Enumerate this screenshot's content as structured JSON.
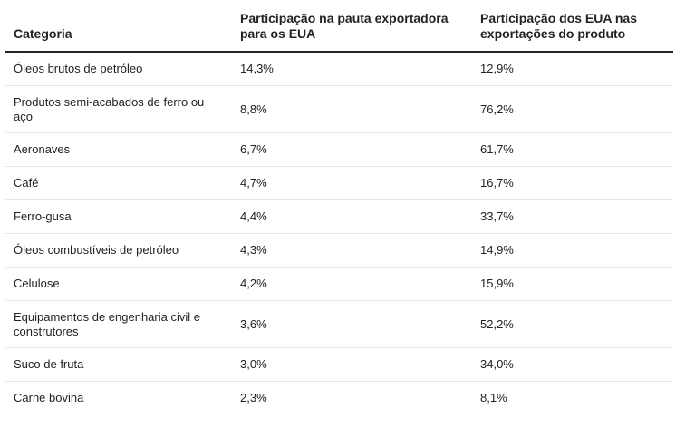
{
  "table": {
    "headers": [
      "Categoria",
      "Participação na pauta exportadora para os EUA",
      "Participação dos EUA nas exportações do produto"
    ],
    "rows": [
      {
        "categoria": "Óleos brutos de petróleo",
        "pauta": "14,3%",
        "eua": "12,9%"
      },
      {
        "categoria": "Produtos semi-acabados de ferro ou aço",
        "pauta": "8,8%",
        "eua": "76,2%"
      },
      {
        "categoria": "Aeronaves",
        "pauta": "6,7%",
        "eua": "61,7%"
      },
      {
        "categoria": "Café",
        "pauta": "4,7%",
        "eua": "16,7%"
      },
      {
        "categoria": "Ferro-gusa",
        "pauta": "4,4%",
        "eua": "33,7%"
      },
      {
        "categoria": "Óleos combustíveis de petróleo",
        "pauta": "4,3%",
        "eua": "14,9%"
      },
      {
        "categoria": "Celulose",
        "pauta": "4,2%",
        "eua": "15,9%"
      },
      {
        "categoria": "Equipamentos de engenharia civil e construtores",
        "pauta": "3,6%",
        "eua": "52,2%"
      },
      {
        "categoria": "Suco de fruta",
        "pauta": "3,0%",
        "eua": "34,0%"
      },
      {
        "categoria": "Carne bovina",
        "pauta": "2,3%",
        "eua": "8,1%"
      }
    ]
  }
}
